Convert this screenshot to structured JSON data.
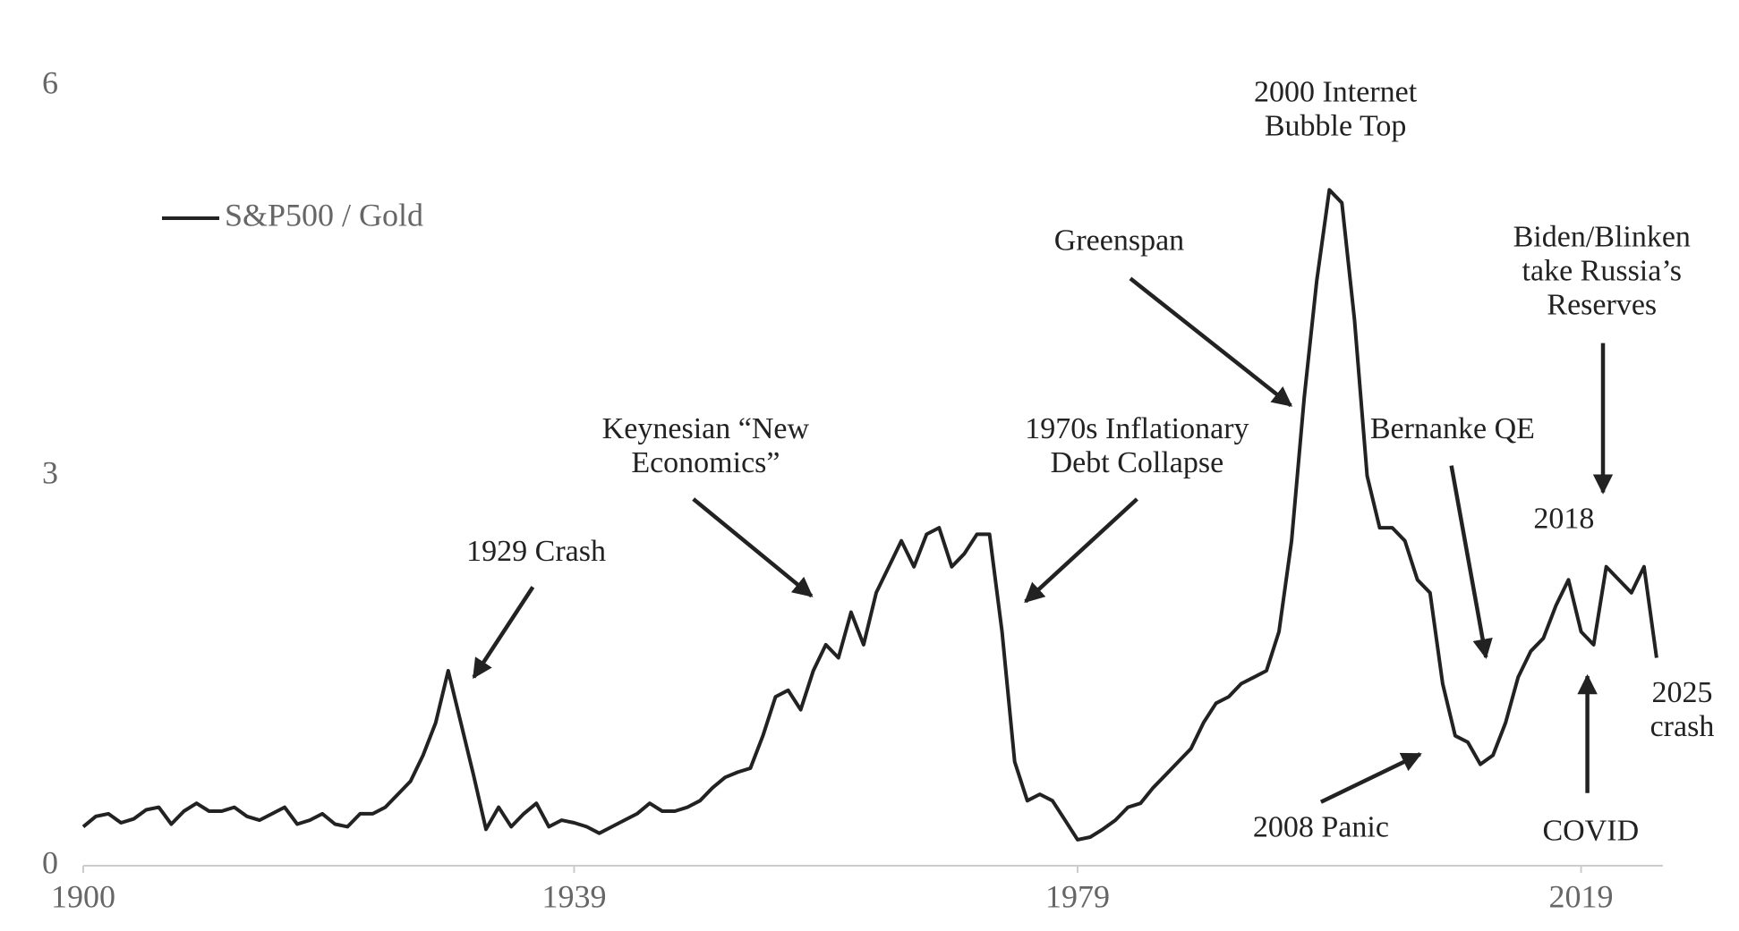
{
  "chart_data": {
    "type": "line",
    "x": [
      1900,
      1901,
      1902,
      1903,
      1904,
      1905,
      1906,
      1907,
      1908,
      1909,
      1910,
      1911,
      1912,
      1913,
      1914,
      1915,
      1916,
      1917,
      1918,
      1919,
      1920,
      1921,
      1922,
      1923,
      1924,
      1925,
      1926,
      1927,
      1928,
      1929,
      1930,
      1931,
      1932,
      1933,
      1934,
      1935,
      1936,
      1937,
      1938,
      1939,
      1940,
      1941,
      1942,
      1943,
      1944,
      1945,
      1946,
      1947,
      1948,
      1949,
      1950,
      1951,
      1952,
      1953,
      1954,
      1955,
      1956,
      1957,
      1958,
      1959,
      1960,
      1961,
      1962,
      1963,
      1964,
      1965,
      1966,
      1967,
      1968,
      1969,
      1970,
      1971,
      1972,
      1973,
      1974,
      1975,
      1976,
      1977,
      1978,
      1979,
      1980,
      1981,
      1982,
      1983,
      1984,
      1985,
      1986,
      1987,
      1988,
      1989,
      1990,
      1991,
      1992,
      1993,
      1994,
      1995,
      1996,
      1997,
      1998,
      1999,
      2000,
      2001,
      2002,
      2003,
      2004,
      2005,
      2006,
      2007,
      2008,
      2009,
      2010,
      2011,
      2012,
      2013,
      2014,
      2015,
      2016,
      2017,
      2018,
      2019,
      2020,
      2021,
      2022,
      2023,
      2024,
      2025
    ],
    "series": [
      {
        "name": "S&P500 / Gold",
        "color": "#222222",
        "values": [
          0.3,
          0.38,
          0.4,
          0.33,
          0.36,
          0.43,
          0.45,
          0.32,
          0.42,
          0.48,
          0.42,
          0.42,
          0.45,
          0.38,
          0.35,
          0.4,
          0.45,
          0.32,
          0.35,
          0.4,
          0.32,
          0.3,
          0.4,
          0.4,
          0.45,
          0.55,
          0.65,
          0.85,
          1.1,
          1.5,
          1.1,
          0.7,
          0.28,
          0.45,
          0.3,
          0.4,
          0.48,
          0.3,
          0.35,
          0.33,
          0.3,
          0.25,
          0.3,
          0.35,
          0.4,
          0.48,
          0.42,
          0.42,
          0.45,
          0.5,
          0.6,
          0.68,
          0.72,
          0.75,
          1.0,
          1.3,
          1.35,
          1.2,
          1.5,
          1.7,
          1.6,
          1.95,
          1.7,
          2.1,
          2.3,
          2.5,
          2.3,
          2.55,
          2.6,
          2.3,
          2.4,
          2.55,
          2.55,
          1.8,
          0.8,
          0.5,
          0.55,
          0.5,
          0.35,
          0.2,
          0.22,
          0.28,
          0.35,
          0.45,
          0.48,
          0.6,
          0.7,
          0.8,
          0.9,
          1.1,
          1.25,
          1.3,
          1.4,
          1.45,
          1.5,
          1.8,
          2.5,
          3.6,
          4.5,
          5.2,
          5.1,
          4.2,
          3.0,
          2.6,
          2.6,
          2.5,
          2.2,
          2.1,
          1.4,
          1.0,
          0.95,
          0.78,
          0.85,
          1.1,
          1.45,
          1.65,
          1.75,
          2.0,
          2.2,
          1.8,
          1.7,
          2.3,
          2.2,
          2.1,
          2.3,
          1.6
        ]
      }
    ],
    "xlim": [
      1900,
      2026
    ],
    "ylim": [
      0,
      6
    ],
    "xticks": [
      1900,
      1939,
      1979,
      2019
    ],
    "yticks": [
      0,
      3,
      6
    ],
    "legend": "upper left",
    "annotations": [
      [
        "1929 Crash"
      ],
      [
        "Keynesian “New",
        "Economics”"
      ],
      [
        "1970s Inflationary",
        "Debt Collapse"
      ],
      [
        "Greenspan"
      ],
      [
        "2000 Internet",
        "Bubble Top"
      ],
      [
        "Bernanke QE"
      ],
      [
        "Biden/Blinken",
        "take Russia’s",
        "Reserves"
      ],
      [
        "2018"
      ],
      [
        "2025",
        "crash"
      ],
      [
        "2008 Panic"
      ],
      [
        "COVID"
      ]
    ]
  }
}
